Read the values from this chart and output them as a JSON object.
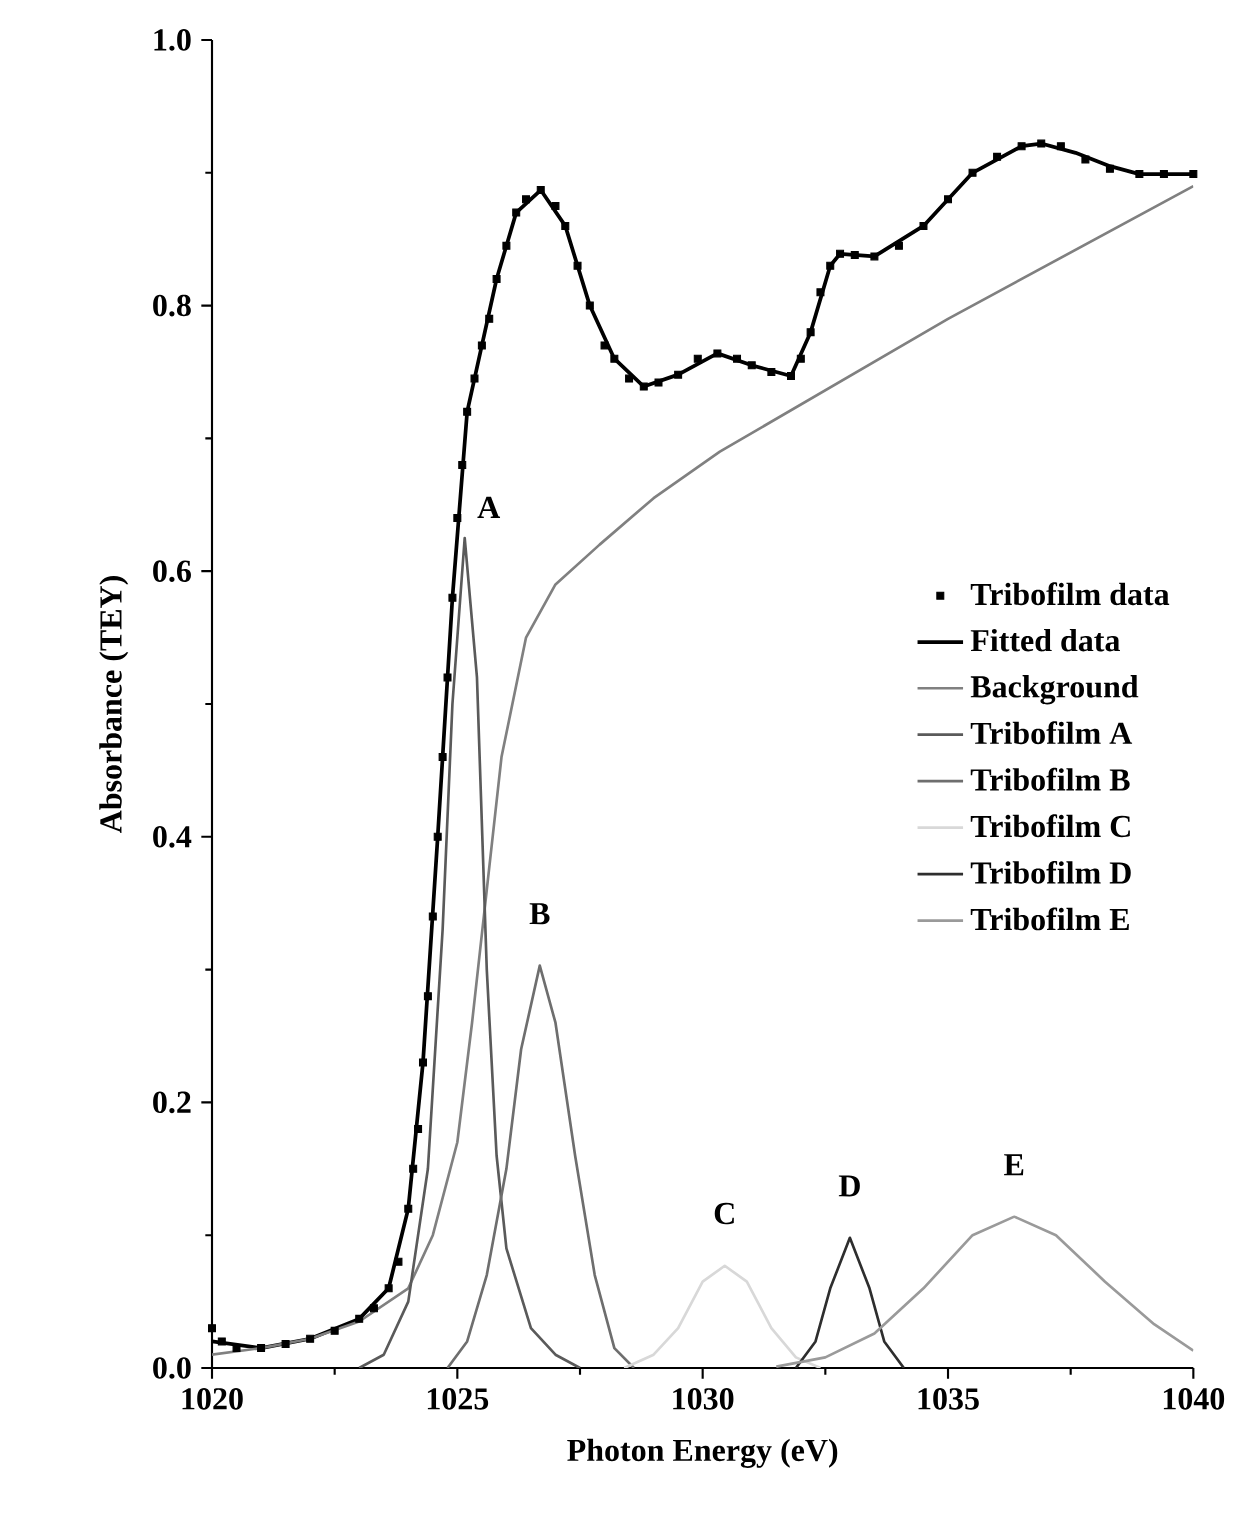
{
  "chart_data": {
    "type": "line",
    "xlabel": "Photon Energy (eV)",
    "ylabel": "Absorbance (TEY)",
    "xlim": [
      1020,
      1040
    ],
    "ylim": [
      0,
      1
    ],
    "xticks": [
      1020,
      1025,
      1030,
      1035,
      1040
    ],
    "yticks": [
      {
        "value": 0,
        "label": "0.0"
      },
      0.2,
      0.4,
      0.6,
      0.8,
      {
        "value": 1,
        "label": "1.0"
      }
    ],
    "legend": "right",
    "grid": false,
    "series": [
      {
        "name": "Tribofilm data",
        "type": "scatter",
        "marker": "square",
        "color": "#000000",
        "x": [
          1020,
          1020.2,
          1020.5,
          1021,
          1021.5,
          1022,
          1022.5,
          1023,
          1023.3,
          1023.6,
          1023.8,
          1024,
          1024.1,
          1024.2,
          1024.3,
          1024.4,
          1024.5,
          1024.6,
          1024.7,
          1024.8,
          1024.9,
          1025,
          1025.1,
          1025.2,
          1025.35,
          1025.5,
          1025.65,
          1025.8,
          1026,
          1026.2,
          1026.4,
          1026.7,
          1027,
          1027.2,
          1027.45,
          1027.7,
          1028,
          1028.2,
          1028.5,
          1028.8,
          1029.1,
          1029.5,
          1029.9,
          1030.3,
          1030.7,
          1031,
          1031.4,
          1031.8,
          1032,
          1032.2,
          1032.4,
          1032.6,
          1032.8,
          1033.1,
          1033.5,
          1034,
          1034.5,
          1035,
          1035.5,
          1036,
          1036.5,
          1036.9,
          1037.3,
          1037.8,
          1038.3,
          1038.9,
          1039.4,
          1040
        ],
        "values": [
          0.03,
          0.02,
          0.015,
          0.015,
          0.018,
          0.022,
          0.028,
          0.037,
          0.045,
          0.06,
          0.08,
          0.12,
          0.15,
          0.18,
          0.23,
          0.28,
          0.34,
          0.4,
          0.46,
          0.52,
          0.58,
          0.64,
          0.68,
          0.72,
          0.745,
          0.77,
          0.79,
          0.82,
          0.845,
          0.87,
          0.88,
          0.887,
          0.875,
          0.86,
          0.83,
          0.8,
          0.77,
          0.76,
          0.745,
          0.739,
          0.742,
          0.748,
          0.76,
          0.764,
          0.76,
          0.755,
          0.75,
          0.747,
          0.76,
          0.78,
          0.81,
          0.83,
          0.839,
          0.838,
          0.837,
          0.845,
          0.86,
          0.88,
          0.9,
          0.912,
          0.92,
          0.922,
          0.92,
          0.91,
          0.903,
          0.899,
          0.899,
          0.899
        ]
      },
      {
        "name": "Fitted data",
        "color": "#000000",
        "x": [
          1020,
          1021,
          1022,
          1023,
          1023.6,
          1024,
          1024.3,
          1024.6,
          1024.9,
          1025.2,
          1025.5,
          1025.8,
          1026.2,
          1026.7,
          1027.2,
          1027.7,
          1028.2,
          1028.8,
          1029.5,
          1030.3,
          1031,
          1031.8,
          1032.2,
          1032.6,
          1032.8,
          1033.5,
          1034.5,
          1035.5,
          1036.5,
          1036.9,
          1037.6,
          1038.3,
          1038.9,
          1040
        ],
        "values": [
          0.02,
          0.015,
          0.022,
          0.037,
          0.06,
          0.12,
          0.23,
          0.4,
          0.58,
          0.72,
          0.77,
          0.82,
          0.87,
          0.887,
          0.86,
          0.8,
          0.76,
          0.739,
          0.748,
          0.764,
          0.755,
          0.747,
          0.78,
          0.83,
          0.839,
          0.837,
          0.86,
          0.9,
          0.92,
          0.922,
          0.915,
          0.905,
          0.899,
          0.899
        ]
      },
      {
        "name": "Background",
        "color": "#808080",
        "x": [
          1020,
          1021,
          1022,
          1023,
          1024,
          1024.5,
          1025,
          1025.3,
          1025.6,
          1025.9,
          1026.4,
          1027,
          1027.9,
          1029,
          1030.35,
          1035,
          1040
        ],
        "values": [
          0.01,
          0.015,
          0.022,
          0.035,
          0.06,
          0.1,
          0.17,
          0.26,
          0.36,
          0.46,
          0.55,
          0.59,
          0.62,
          0.655,
          0.69,
          0.79,
          0.89
        ]
      },
      {
        "name": "Tribofilm A",
        "color": "#5a5a5a",
        "x": [
          1023.0,
          1023.5,
          1024.0,
          1024.4,
          1024.7,
          1024.9,
          1025.15,
          1025.4,
          1025.6,
          1025.8,
          1026.0,
          1026.5,
          1027,
          1027.5
        ],
        "values": [
          0.0,
          0.01,
          0.05,
          0.15,
          0.33,
          0.5,
          0.625,
          0.52,
          0.3,
          0.16,
          0.09,
          0.03,
          0.01,
          0.0
        ]
      },
      {
        "name": "Tribofilm B",
        "color": "#6e6e6e",
        "x": [
          1024.8,
          1025.2,
          1025.6,
          1026.0,
          1026.3,
          1026.68,
          1027.0,
          1027.4,
          1027.8,
          1028.2,
          1028.6
        ],
        "values": [
          0,
          0.02,
          0.07,
          0.15,
          0.24,
          0.303,
          0.26,
          0.16,
          0.07,
          0.015,
          0
        ]
      },
      {
        "name": "Tribofilm C",
        "color": "#d8d8d8",
        "x": [
          1028.4,
          1029.0,
          1029.5,
          1030.0,
          1030.45,
          1030.9,
          1031.4,
          1031.9,
          1032.4
        ],
        "values": [
          0,
          0.01,
          0.03,
          0.065,
          0.077,
          0.065,
          0.03,
          0.008,
          0
        ]
      },
      {
        "name": "Tribofilm D",
        "color": "#2e2e2e",
        "x": [
          1031.9,
          1032.3,
          1032.6,
          1033.0,
          1033.4,
          1033.7,
          1034.1
        ],
        "values": [
          0,
          0.02,
          0.06,
          0.098,
          0.06,
          0.02,
          0
        ]
      },
      {
        "name": "Tribofilm E",
        "color": "#9a9a9a",
        "x": [
          1031.5,
          1032.5,
          1033.5,
          1034.5,
          1035.5,
          1036.35,
          1037.2,
          1038.2,
          1039.2,
          1040
        ],
        "values": [
          0.001,
          0.008,
          0.026,
          0.06,
          0.1,
          0.114,
          0.1,
          0.065,
          0.033,
          0.013
        ]
      }
    ],
    "annotations": [
      {
        "text": "A",
        "x": 1025.15,
        "y": 0.625
      },
      {
        "text": "B",
        "x": 1026.68,
        "y": 0.303
      },
      {
        "text": "C",
        "x": 1030.45,
        "y": 0.077
      },
      {
        "text": "D",
        "x": 1033.0,
        "y": 0.098
      },
      {
        "text": "E",
        "x": 1036.35,
        "y": 0.114
      }
    ]
  }
}
